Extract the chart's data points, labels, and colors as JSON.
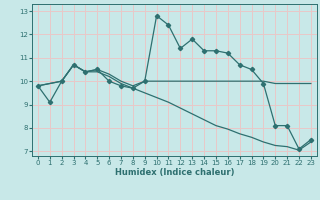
{
  "background_color": "#c8e8e8",
  "grid_color": "#e8c8c8",
  "line_color": "#2e7070",
  "xlabel": "Humidex (Indice chaleur)",
  "xlim": [
    -0.5,
    23.5
  ],
  "ylim": [
    6.8,
    13.3
  ],
  "xticks": [
    0,
    1,
    2,
    3,
    4,
    5,
    6,
    7,
    8,
    9,
    10,
    11,
    12,
    13,
    14,
    15,
    16,
    17,
    18,
    19,
    20,
    21,
    22,
    23
  ],
  "yticks": [
    7,
    8,
    9,
    10,
    11,
    12,
    13
  ],
  "line1_x": [
    0,
    1,
    2,
    3,
    4,
    5,
    6,
    7,
    8,
    9,
    10,
    11,
    12,
    13,
    14,
    15,
    16,
    17,
    18,
    19,
    20,
    21,
    22,
    23
  ],
  "line1_y": [
    9.8,
    9.1,
    10.0,
    10.7,
    10.4,
    10.5,
    10.0,
    9.8,
    9.7,
    10.0,
    12.8,
    12.4,
    11.4,
    11.8,
    11.3,
    11.3,
    11.2,
    10.7,
    10.5,
    9.9,
    8.1,
    8.1,
    7.1,
    7.5
  ],
  "line2_x": [
    0,
    2,
    3,
    4,
    5,
    6,
    7,
    8,
    9,
    10,
    11,
    12,
    13,
    14,
    15,
    16,
    17,
    18,
    19,
    20,
    21,
    22,
    23
  ],
  "line2_y": [
    9.8,
    10.0,
    10.7,
    10.4,
    10.5,
    10.3,
    10.0,
    9.8,
    10.0,
    10.0,
    10.0,
    10.0,
    10.0,
    10.0,
    10.0,
    10.0,
    10.0,
    10.0,
    10.0,
    9.9,
    9.9,
    9.9,
    9.9
  ],
  "line3_x": [
    0,
    2,
    3,
    4,
    5,
    6,
    7,
    8,
    9,
    10,
    11,
    12,
    13,
    14,
    15,
    16,
    17,
    18,
    19,
    20,
    21,
    22,
    23
  ],
  "line3_y": [
    9.8,
    10.0,
    10.7,
    10.4,
    10.4,
    10.2,
    9.9,
    9.7,
    9.5,
    9.3,
    9.1,
    8.85,
    8.6,
    8.35,
    8.1,
    7.95,
    7.75,
    7.6,
    7.4,
    7.25,
    7.2,
    7.05,
    7.4
  ]
}
